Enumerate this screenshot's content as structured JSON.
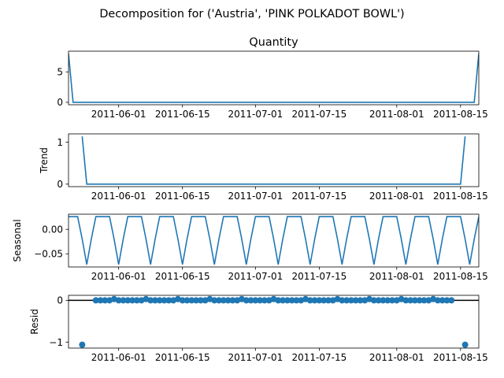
{
  "figure": {
    "suptitle": "Decomposition for ('Austria', 'PINK POLKADOT BOWL')"
  },
  "chart_data": [
    {
      "type": "line",
      "title": "Quantity",
      "ylabel": "",
      "x_start": "2011-05-21",
      "x_end": "2011-08-19",
      "x_ticks": [
        "2011-06-01",
        "2011-06-15",
        "2011-07-01",
        "2011-07-15",
        "2011-08-01",
        "2011-08-15"
      ],
      "ylim": [
        -0.4,
        8.4
      ],
      "y_ticks": [
        0,
        5
      ],
      "series": [
        {
          "points": [
            [
              "2011-05-21",
              8
            ],
            [
              "2011-05-22",
              0
            ],
            [
              "2011-08-18",
              0
            ],
            [
              "2011-08-19",
              8
            ]
          ]
        }
      ]
    },
    {
      "type": "line",
      "title": "",
      "ylabel": "Trend",
      "x_start": "2011-05-21",
      "x_end": "2011-08-19",
      "x_ticks": [
        "2011-06-01",
        "2011-06-15",
        "2011-07-01",
        "2011-07-15",
        "2011-08-01",
        "2011-08-15"
      ],
      "ylim": [
        -0.06,
        1.2
      ],
      "y_ticks": [
        0,
        1
      ],
      "series": [
        {
          "points": [
            [
              "2011-05-24",
              1.14
            ],
            [
              "2011-05-25",
              0
            ],
            [
              "2011-08-15",
              0
            ],
            [
              "2011-08-16",
              1.14
            ]
          ]
        }
      ]
    },
    {
      "type": "line",
      "title": "",
      "ylabel": "Seasonal",
      "x_start": "2011-05-21",
      "x_end": "2011-08-19",
      "x_ticks": [
        "2011-06-01",
        "2011-06-15",
        "2011-07-01",
        "2011-07-15",
        "2011-08-01",
        "2011-08-15"
      ],
      "ylim": [
        -0.077,
        0.031
      ],
      "y_ticks": [
        0.0,
        -0.05
      ],
      "y_tick_labels": [
        "0.00",
        "−0.05"
      ],
      "period": 7,
      "pattern": [
        0.026,
        0.026,
        0.026,
        -0.02,
        -0.072,
        -0.02,
        0.026
      ],
      "series": [
        {
          "name": "",
          "values": []
        }
      ]
    },
    {
      "type": "scatter",
      "title": "",
      "ylabel": "Resid",
      "x_start": "2011-05-21",
      "x_end": "2011-08-19",
      "x_ticks": [
        "2011-06-01",
        "2011-06-15",
        "2011-07-01",
        "2011-07-15",
        "2011-08-01",
        "2011-08-15"
      ],
      "ylim": [
        -1.14,
        0.12
      ],
      "y_ticks": [
        0,
        -1
      ],
      "y_tick_labels": [
        "0",
        "−1"
      ],
      "baseline": 0,
      "outliers": [
        [
          "2011-05-24",
          -1.06
        ],
        [
          "2011-08-16",
          -1.06
        ]
      ],
      "period": 7,
      "pattern": [
        0.0,
        0.0,
        0.0,
        0.0,
        0.03,
        0.0,
        0.0
      ]
    }
  ],
  "colors": {
    "line": "#1f77b4",
    "axes": "#000000",
    "background": "#ffffff"
  }
}
